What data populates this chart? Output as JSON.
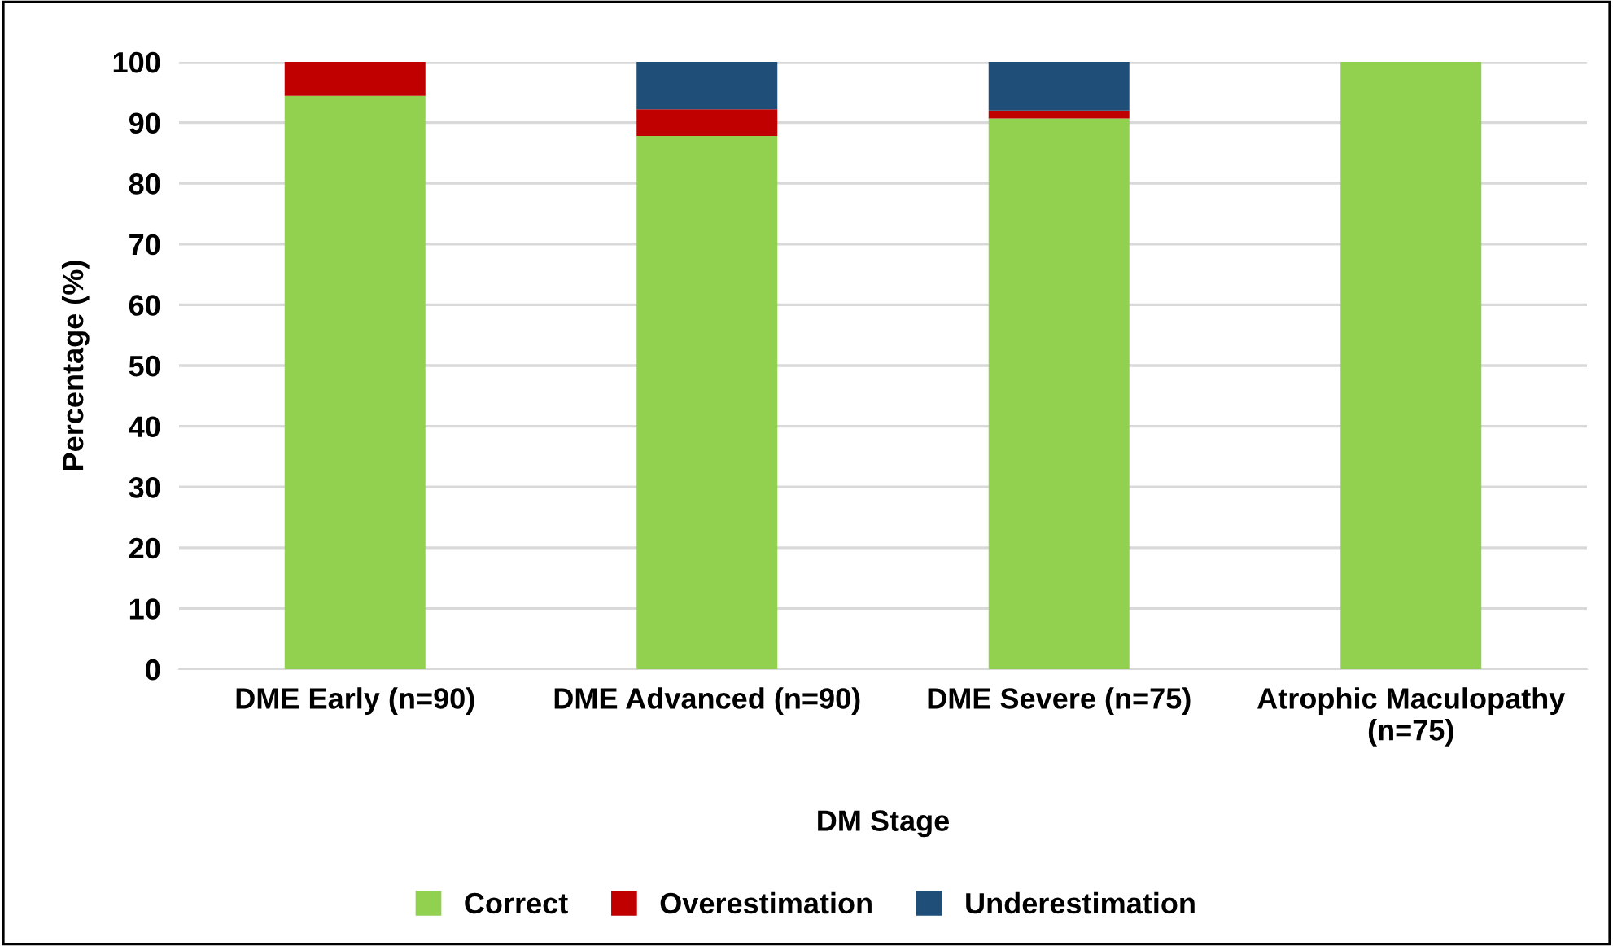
{
  "chart_data": {
    "type": "bar",
    "stacked": true,
    "xlabel": "DM Stage",
    "ylabel": "Percentage (%)",
    "categories": [
      "DME Early (n=90)",
      "DME Advanced (n=90)",
      "DME Severe (n=75)",
      "Atrophic Maculopathy\n(n=75)"
    ],
    "series": [
      {
        "name": "Correct",
        "color": "#92d050",
        "values": [
          94.4,
          87.8,
          90.7,
          100
        ]
      },
      {
        "name": "Overestimation",
        "color": "#c00000",
        "values": [
          5.6,
          4.4,
          1.3,
          0
        ]
      },
      {
        "name": "Underestimation",
        "color": "#1f4e79",
        "values": [
          0,
          7.8,
          8.0,
          0
        ]
      }
    ],
    "ylim": [
      0,
      100
    ],
    "yticks": [
      0,
      10,
      20,
      30,
      40,
      50,
      60,
      70,
      80,
      90,
      100
    ],
    "grid": "y",
    "legend": "bottom"
  }
}
